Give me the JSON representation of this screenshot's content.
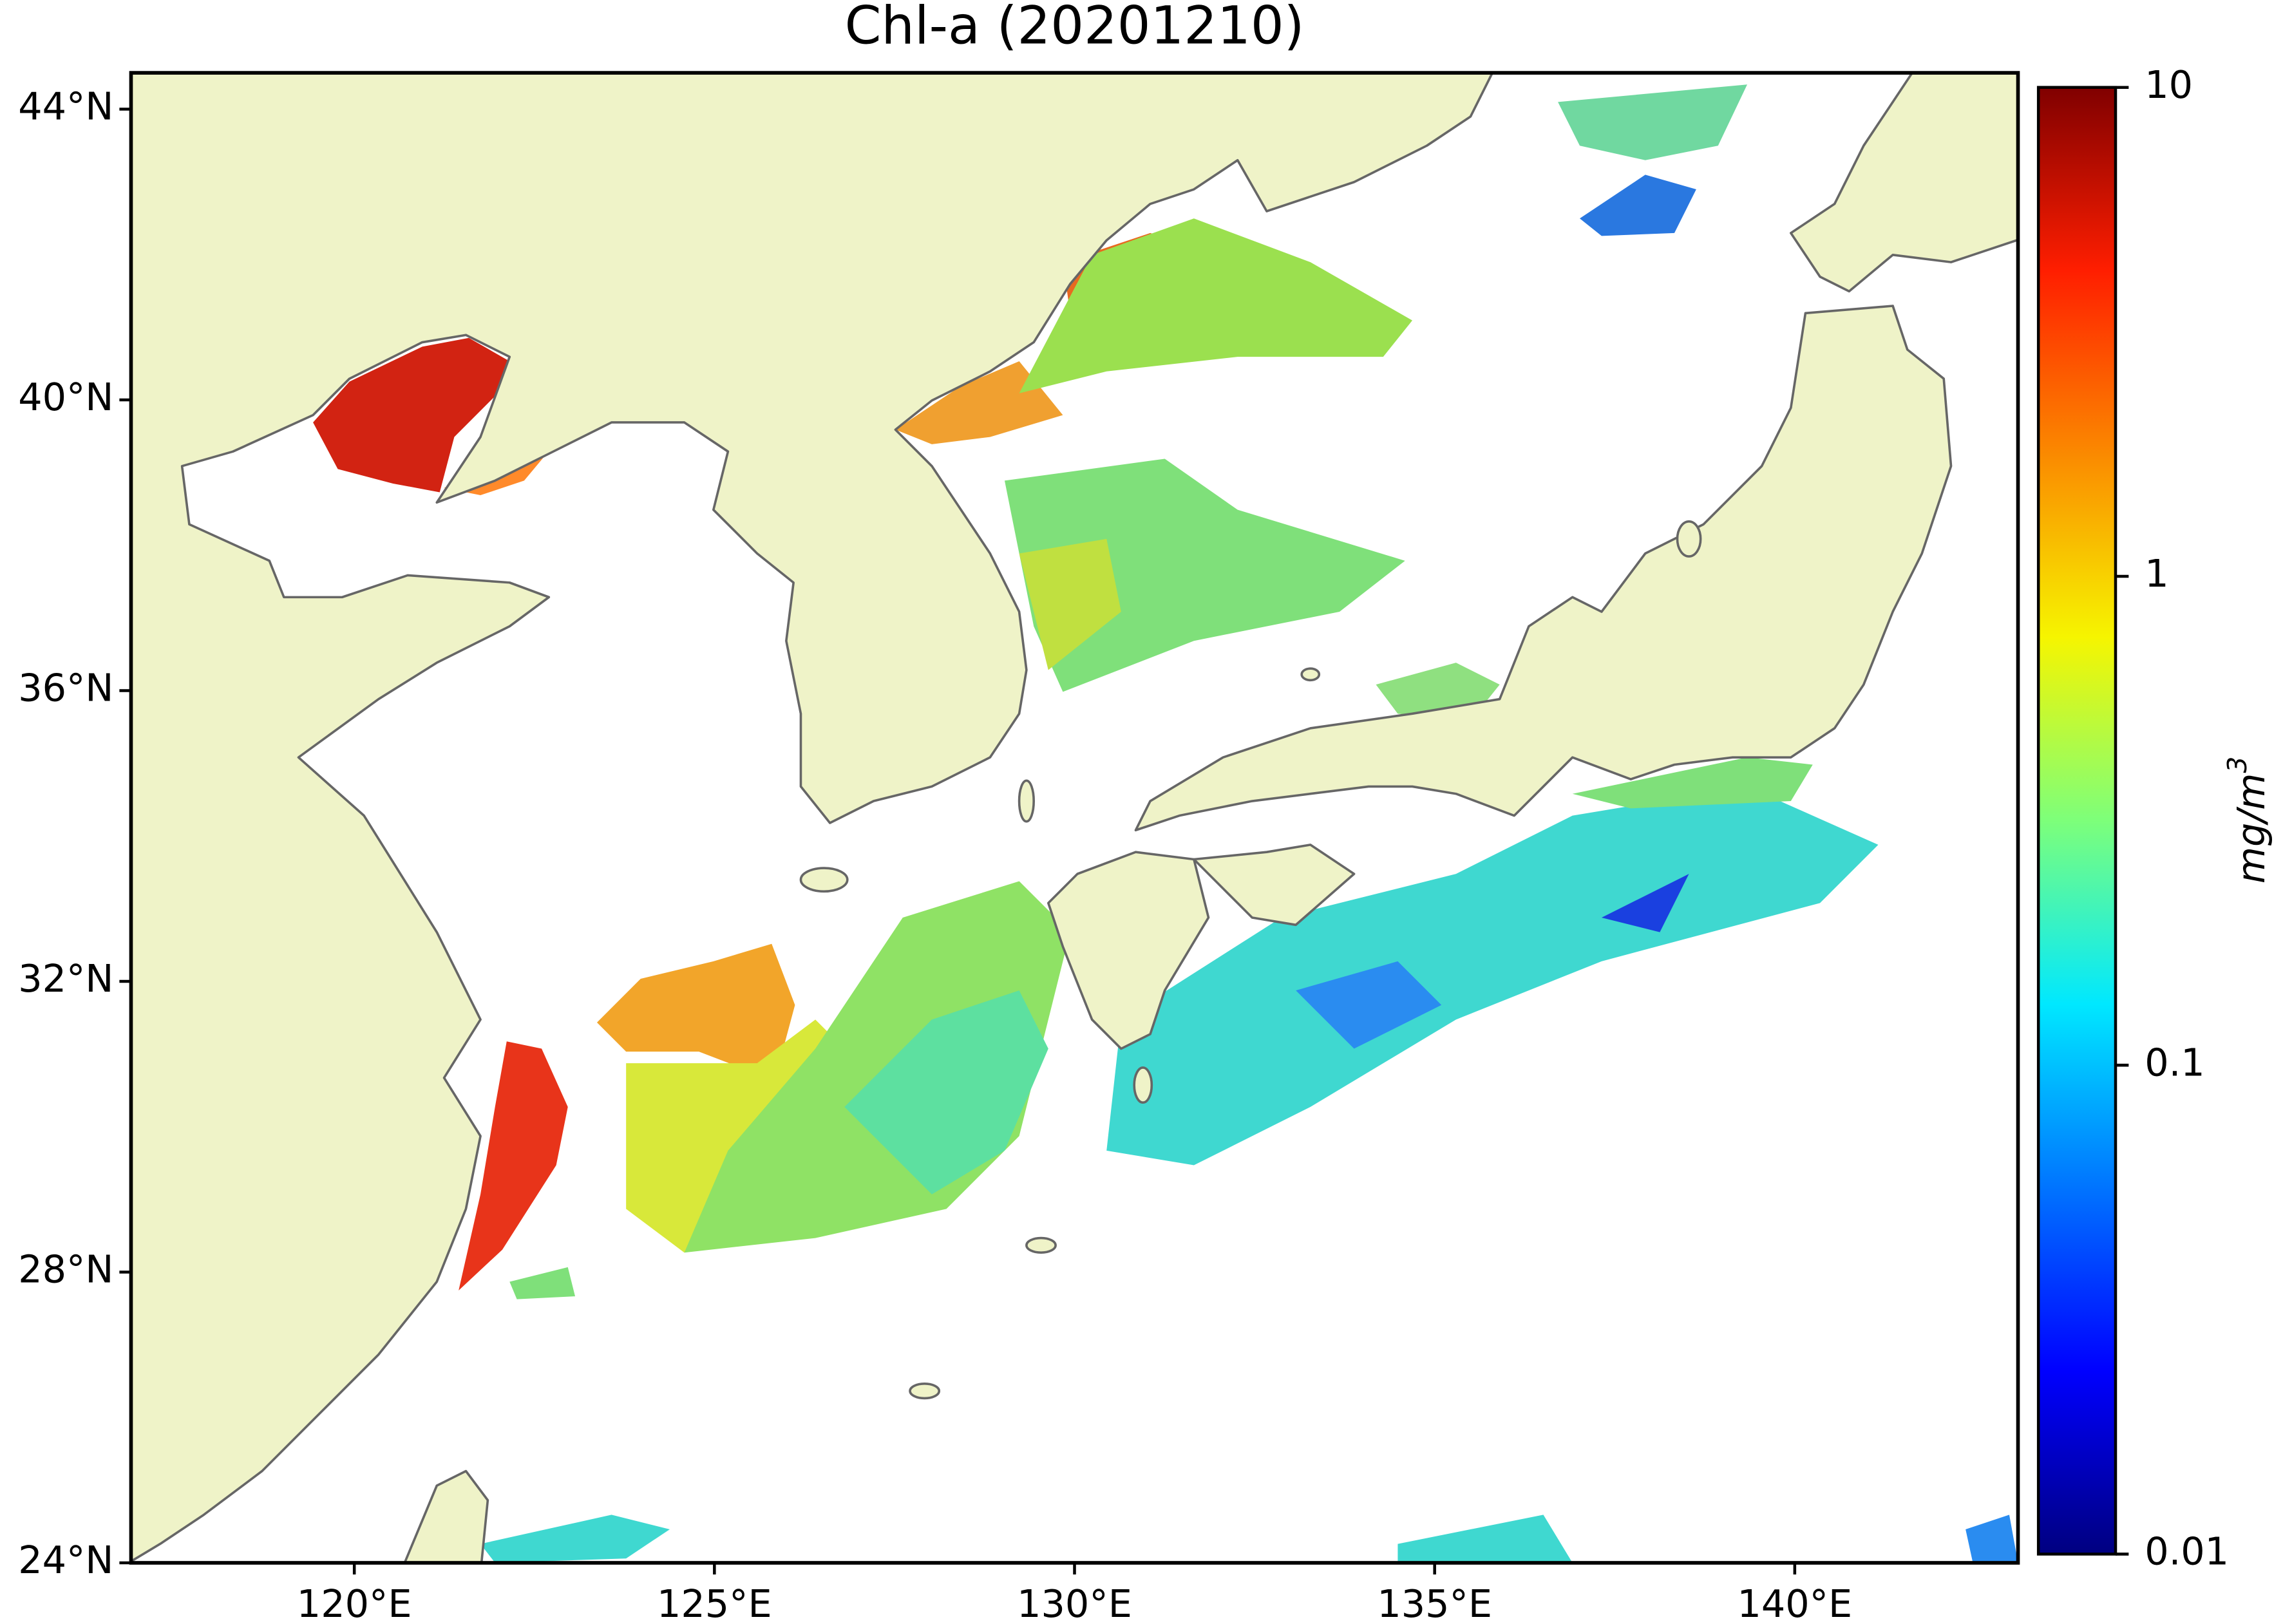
{
  "chart_data": {
    "type": "map",
    "title": "Chl-a (20201210)",
    "xlim": [
      116.9,
      143.1
    ],
    "ylim": [
      24,
      44.5
    ],
    "xticks": [
      {
        "value": 120,
        "label": "120°E"
      },
      {
        "value": 125,
        "label": "125°E"
      },
      {
        "value": 130,
        "label": "130°E"
      },
      {
        "value": 135,
        "label": "135°E"
      },
      {
        "value": 140,
        "label": "140°E"
      }
    ],
    "yticks": [
      {
        "value": 24,
        "label": "24°N"
      },
      {
        "value": 28,
        "label": "28°N"
      },
      {
        "value": 32,
        "label": "32°N"
      },
      {
        "value": 36,
        "label": "36°N"
      },
      {
        "value": 40,
        "label": "40°N"
      },
      {
        "value": 44,
        "label": "44°N"
      }
    ],
    "colorbar": {
      "label": "mg/m",
      "label_sup": "3",
      "log": true,
      "lim": [
        0.01,
        10
      ],
      "ticks": [
        0.01,
        0.1,
        1,
        10
      ]
    }
  }
}
